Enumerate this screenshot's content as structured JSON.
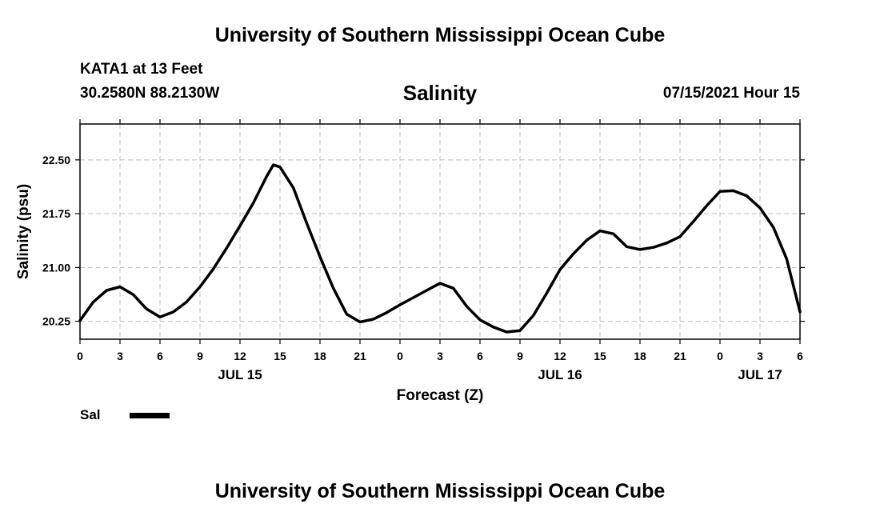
{
  "header": {
    "top_title": "University of Southern Mississippi Ocean Cube",
    "station": "KATA1 at 13 Feet",
    "coords": "30.2580N  88.2130W",
    "variable": "Salinity",
    "timestamp": "07/15/2021 Hour 15"
  },
  "footer": {
    "bottom_title": "University of Southern Mississippi Ocean Cube"
  },
  "legend": {
    "label": "Sal",
    "color": "#000000"
  },
  "chart_data": {
    "type": "line",
    "xlabel": "Forecast (Z)",
    "ylabel": "Salinity (psu)",
    "x_start_label": "0",
    "x_range_hours": [
      0,
      54
    ],
    "x_tick_step_hours": 3,
    "x_tick_labels": [
      "0",
      "3",
      "6",
      "9",
      "12",
      "15",
      "18",
      "21",
      "0",
      "3",
      "6",
      "9",
      "12",
      "15",
      "18",
      "21",
      "0",
      "3",
      "6"
    ],
    "date_labels": [
      {
        "text": "JUL 15",
        "hour": 12
      },
      {
        "text": "JUL 16",
        "hour": 36
      },
      {
        "text": "JUL 17",
        "hour": 51
      }
    ],
    "y_ticks": [
      20.25,
      21.0,
      21.75,
      22.5
    ],
    "y_tick_labels": [
      "20.25",
      "21.00",
      "21.75",
      "22.50"
    ],
    "ylim": [
      20.0,
      23.0
    ],
    "grid": true,
    "series": [
      {
        "name": "Sal",
        "color": "#000000",
        "points": [
          [
            0,
            20.26
          ],
          [
            1,
            20.52
          ],
          [
            2,
            20.68
          ],
          [
            3,
            20.73
          ],
          [
            4,
            20.62
          ],
          [
            5,
            20.42
          ],
          [
            6,
            20.31
          ],
          [
            7,
            20.38
          ],
          [
            8,
            20.52
          ],
          [
            9,
            20.73
          ],
          [
            10,
            20.98
          ],
          [
            11,
            21.27
          ],
          [
            12,
            21.58
          ],
          [
            13,
            21.9
          ],
          [
            14,
            22.27
          ],
          [
            14.5,
            22.43
          ],
          [
            15,
            22.4
          ],
          [
            16,
            22.11
          ],
          [
            17,
            21.62
          ],
          [
            18,
            21.15
          ],
          [
            19,
            20.71
          ],
          [
            20,
            20.35
          ],
          [
            21,
            20.24
          ],
          [
            22,
            20.28
          ],
          [
            23,
            20.37
          ],
          [
            24,
            20.48
          ],
          [
            25,
            20.58
          ],
          [
            26,
            20.68
          ],
          [
            27,
            20.78
          ],
          [
            28,
            20.71
          ],
          [
            29,
            20.46
          ],
          [
            30,
            20.27
          ],
          [
            31,
            20.17
          ],
          [
            32,
            20.1
          ],
          [
            33,
            20.12
          ],
          [
            34,
            20.33
          ],
          [
            35,
            20.64
          ],
          [
            36,
            20.97
          ],
          [
            37,
            21.19
          ],
          [
            38,
            21.38
          ],
          [
            39,
            21.51
          ],
          [
            40,
            21.47
          ],
          [
            41,
            21.29
          ],
          [
            42,
            21.25
          ],
          [
            43,
            21.28
          ],
          [
            44,
            21.34
          ],
          [
            45,
            21.43
          ],
          [
            46,
            21.64
          ],
          [
            47,
            21.86
          ],
          [
            48,
            22.06
          ],
          [
            49,
            22.07
          ],
          [
            50,
            22.0
          ],
          [
            51,
            21.83
          ],
          [
            52,
            21.56
          ],
          [
            53,
            21.12
          ],
          [
            54,
            20.38
          ]
        ]
      }
    ]
  }
}
